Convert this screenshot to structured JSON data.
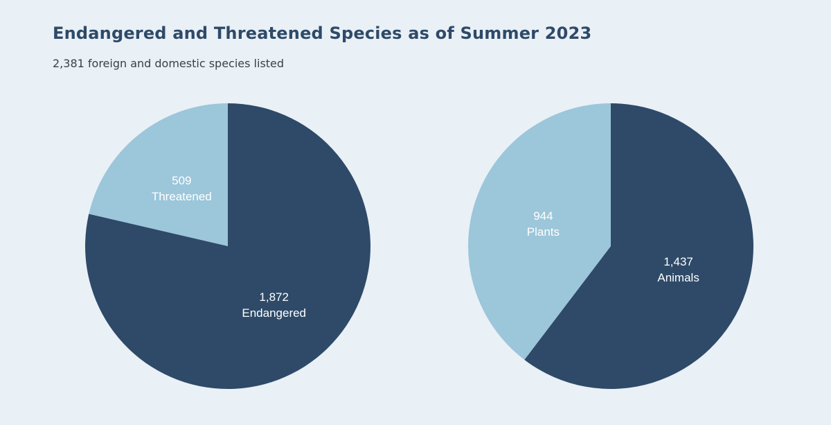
{
  "header": {
    "title": "Endangered and Threatened Species as of Summer 2023",
    "subtitle": "2,381 foreign and domestic species listed"
  },
  "colors": {
    "background": "#e9f0f6",
    "dark": "#2e4a68",
    "light": "#9cc6da"
  },
  "chart_data": [
    {
      "type": "pie",
      "title": "",
      "slices": [
        {
          "label": "Endangered",
          "value": 1872,
          "value_text": "1,872",
          "color": "#2e4a68"
        },
        {
          "label": "Threatened",
          "value": 509,
          "value_text": "509",
          "color": "#9cc6da"
        }
      ],
      "start": "12 o'clock",
      "direction": "clockwise",
      "legend": "none"
    },
    {
      "type": "pie",
      "title": "",
      "slices": [
        {
          "label": "Animals",
          "value": 1437,
          "value_text": "1,437",
          "color": "#2e4a68"
        },
        {
          "label": "Plants",
          "value": 944,
          "value_text": "944",
          "color": "#9cc6da"
        }
      ],
      "start": "12 o'clock",
      "direction": "clockwise",
      "legend": "none"
    }
  ]
}
